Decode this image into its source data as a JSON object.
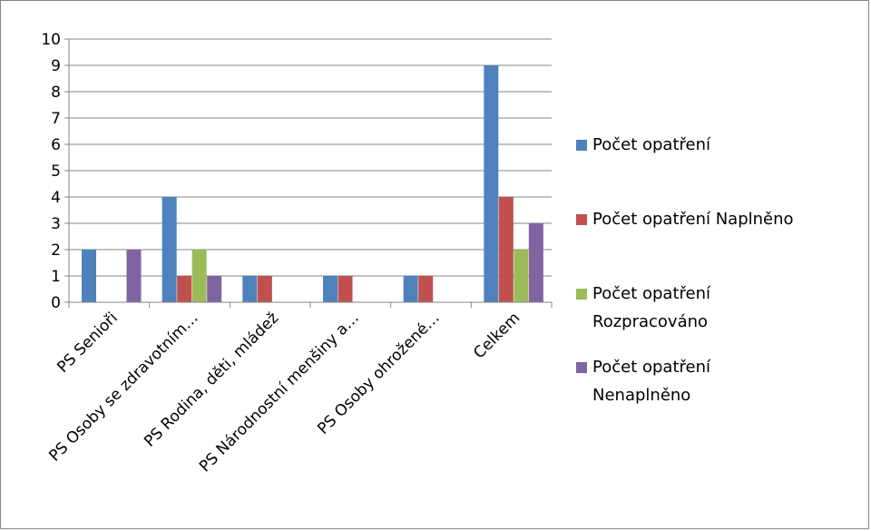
{
  "chart_data": {
    "type": "bar",
    "title": "",
    "xlabel": "",
    "ylabel": "",
    "ylim": [
      0,
      10
    ],
    "yticks": [
      0,
      1,
      2,
      3,
      4,
      5,
      6,
      7,
      8,
      9,
      10
    ],
    "grid": true,
    "legend_position": "right",
    "categories": [
      "PS Senioři",
      "PS Osoby se zdravotním…",
      "PS Rodina, děti, mládež",
      "PS Národnostní menšiny a…",
      "PS Osoby ohrožené…",
      "Celkem"
    ],
    "series": [
      {
        "name": "Počet opatření",
        "color": "#4F81BD",
        "values": [
          2,
          4,
          1,
          1,
          1,
          9
        ]
      },
      {
        "name": "Počet opatření Naplněno",
        "color": "#C0504D",
        "values": [
          0,
          1,
          1,
          1,
          1,
          4
        ]
      },
      {
        "name": "Počet opatření Rozpracováno",
        "color": "#9BBB59",
        "values": [
          0,
          2,
          0,
          0,
          0,
          2
        ]
      },
      {
        "name": "Počet opatření Nenaplněno",
        "color": "#8064A2",
        "values": [
          2,
          1,
          0,
          0,
          0,
          3
        ]
      }
    ]
  }
}
